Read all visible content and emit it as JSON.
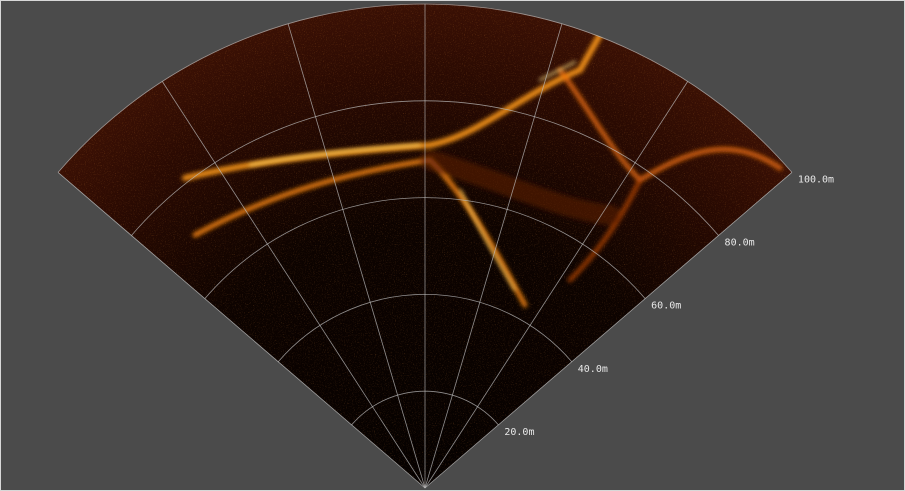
{
  "range_labels": [
    "20.0m",
    "40.0m",
    "60.0m",
    "80.0m",
    "100.0m"
  ]
}
